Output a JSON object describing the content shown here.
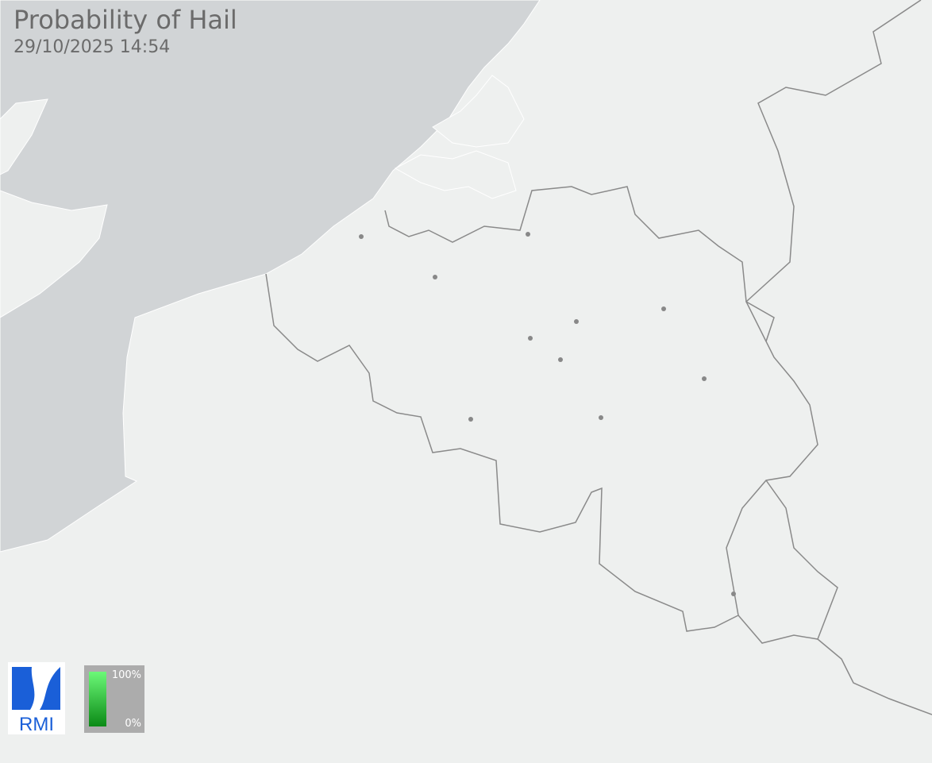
{
  "title": "Probability of Hail",
  "timestamp": "29/10/2025 14:54",
  "logo_text": "RMI",
  "legend": {
    "max_label": "100%",
    "min_label": "0%",
    "color_high": "#6cf978",
    "color_low": "#0b8a16"
  },
  "colors": {
    "sea": "#d1d4d6",
    "land": "#eef0ef",
    "border": "#8a8a8a",
    "city": "#888888",
    "logo_blue": "#1a5fd8"
  },
  "city_markers": 11
}
